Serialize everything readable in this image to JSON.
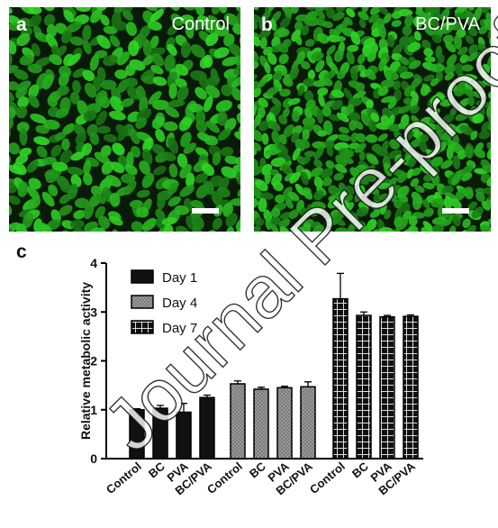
{
  "panels": {
    "a": {
      "label": "a",
      "title": "Control"
    },
    "b": {
      "label": "b",
      "title": "BC/PVA"
    },
    "c": {
      "label": "c"
    }
  },
  "watermark": "Journal Pre-proof",
  "colors": {
    "fluorescence_green": "#2f9a2c",
    "background": "#0a1a08",
    "bars": "#111111",
    "day4_fill": "#9a9a9a"
  },
  "chart_data": {
    "type": "bar",
    "ylabel": "Relative metabolic activity",
    "ylim": [
      0,
      4
    ],
    "yticks": [
      "0",
      "1",
      "2",
      "3",
      "4"
    ],
    "categories": [
      "Control",
      "BC",
      "PVA",
      "BC/PVA"
    ],
    "legend_position": "top-left",
    "series": [
      {
        "name": "Day 1",
        "pattern": "solid",
        "values": [
          1.0,
          1.03,
          0.95,
          1.25
        ],
        "errors": [
          0.02,
          0.06,
          0.18,
          0.05
        ]
      },
      {
        "name": "Day 4",
        "pattern": "dotted",
        "values": [
          1.53,
          1.42,
          1.45,
          1.47
        ],
        "errors": [
          0.06,
          0.04,
          0.03,
          0.1
        ]
      },
      {
        "name": "Day 7",
        "pattern": "grid",
        "values": [
          3.27,
          2.93,
          2.9,
          2.91
        ],
        "errors": [
          0.52,
          0.07,
          0.03,
          0.03
        ]
      }
    ]
  }
}
